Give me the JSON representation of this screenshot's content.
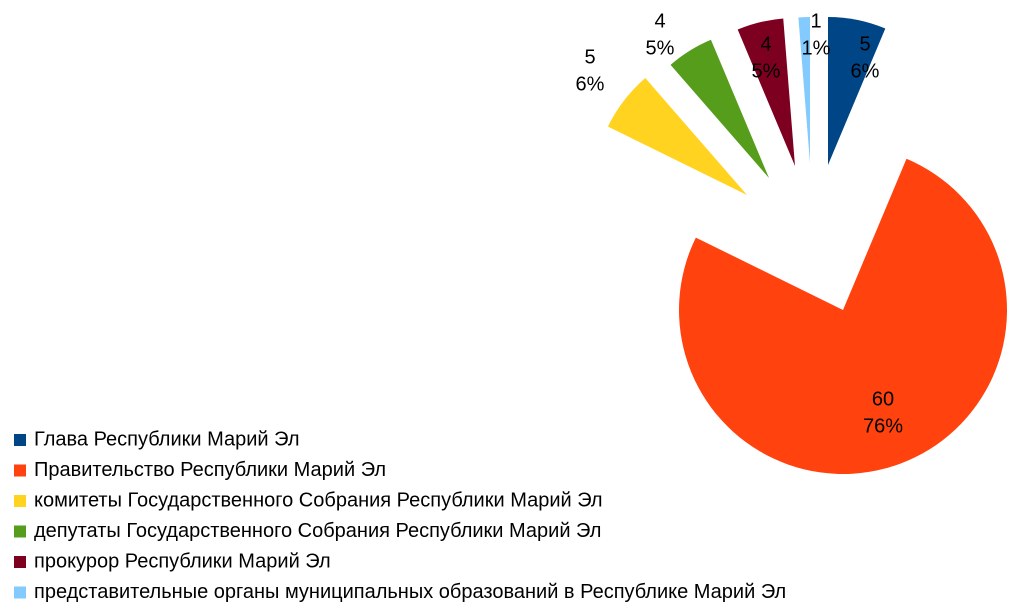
{
  "chart_data": {
    "type": "pie",
    "categories": [
      "Глава Республики Марий Эл",
      "Правительство Республики Марий Эл",
      "комитеты Государственного Собрания Республики Марий Эл",
      "депутаты Государственного Собрания Республики Марий Эл",
      "прокурор Республики Марий Эл",
      "представительные органы муниципальных образований в Республике Марий Эл"
    ],
    "values": [
      5,
      60,
      5,
      4,
      4,
      1
    ],
    "percent_labels": [
      "6%",
      "76%",
      "6%",
      "5%",
      "5%",
      "1%"
    ],
    "colors": [
      "#004586",
      "#ff420e",
      "#ffd320",
      "#579d1c",
      "#7e0021",
      "#83caff"
    ],
    "legend": "bottom-left"
  }
}
